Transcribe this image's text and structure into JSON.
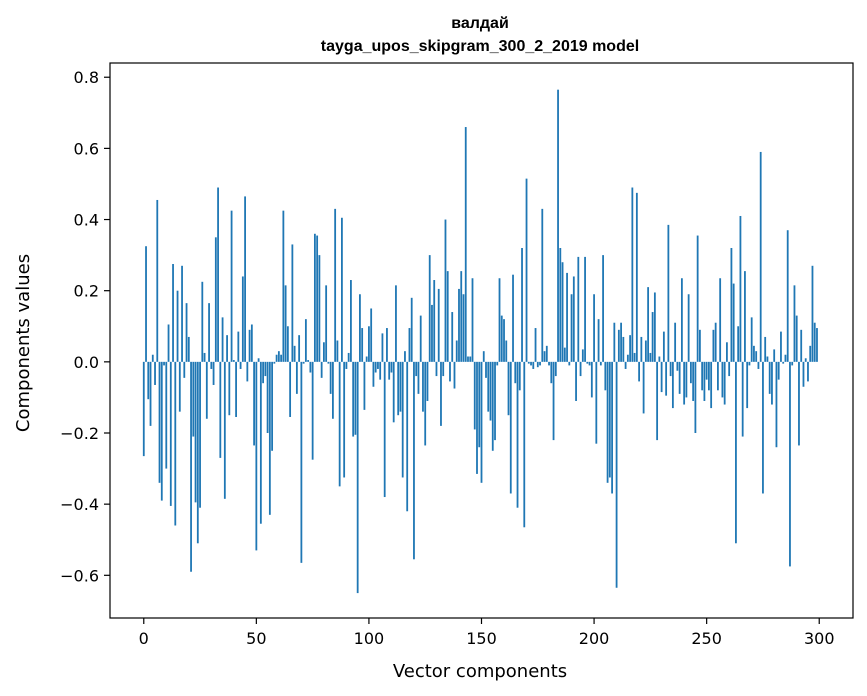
{
  "chart_data": {
    "type": "bar",
    "title": "валдай",
    "subtitle": "tayga_upos_skipgram_300_2_2019 model",
    "xlabel": "Vector components",
    "ylabel": "Components values",
    "xlim": [
      -15,
      315
    ],
    "ylim": [
      -0.72,
      0.84
    ],
    "x_ticks": [
      0,
      50,
      100,
      150,
      200,
      250,
      300
    ],
    "y_ticks": [
      0.8,
      0.6,
      0.4,
      0.2,
      0.0,
      -0.2,
      -0.4,
      -0.6
    ],
    "y_tick_labels": [
      "0.8",
      "0.6",
      "0.4",
      "0.2",
      "0.0",
      "−0.2",
      "−0.4",
      "−0.6"
    ],
    "grid": false,
    "bar_color": "#1f77b4",
    "values": [
      -0.265,
      0.325,
      -0.105,
      -0.18,
      0.02,
      -0.065,
      0.455,
      -0.34,
      -0.39,
      -0.01,
      -0.3,
      0.105,
      -0.405,
      0.275,
      -0.46,
      0.2,
      -0.14,
      0.27,
      -0.045,
      0.165,
      0.07,
      -0.59,
      -0.21,
      -0.395,
      -0.51,
      -0.41,
      0.225,
      0.025,
      -0.16,
      0.165,
      -0.02,
      -0.065,
      0.35,
      0.49,
      -0.27,
      0.125,
      -0.385,
      0.075,
      -0.15,
      0.425,
      0.005,
      -0.155,
      0.085,
      -0.02,
      0.24,
      0.465,
      -0.055,
      0.09,
      0.105,
      -0.235,
      -0.53,
      0.01,
      -0.455,
      -0.06,
      -0.04,
      -0.2,
      -0.43,
      -0.25,
      -0.005,
      0.02,
      0.03,
      0.02,
      0.425,
      0.215,
      0.1,
      -0.155,
      0.33,
      0.045,
      -0.09,
      0.075,
      -0.565,
      -0.005,
      0.12,
      0.005,
      -0.03,
      -0.275,
      0.36,
      0.355,
      0.3,
      -0.045,
      0.055,
      0.215,
      -0.005,
      -0.09,
      -0.16,
      0.43,
      0.06,
      -0.35,
      0.405,
      -0.325,
      -0.02,
      0.025,
      0.23,
      -0.21,
      -0.205,
      -0.65,
      0.19,
      0.095,
      -0.135,
      0.015,
      0.1,
      0.15,
      -0.07,
      -0.03,
      -0.02,
      -0.05,
      0.08,
      -0.38,
      0.095,
      -0.05,
      -0.03,
      -0.17,
      0.215,
      -0.15,
      -0.14,
      -0.325,
      0.03,
      -0.42,
      0.095,
      0.18,
      -0.555,
      -0.04,
      -0.09,
      0.13,
      -0.14,
      -0.235,
      -0.11,
      0.3,
      0.16,
      0.23,
      -0.04,
      0.205,
      -0.18,
      -0.04,
      0.4,
      0.255,
      -0.055,
      0.14,
      -0.075,
      0.06,
      0.205,
      0.255,
      0.19,
      0.66,
      0.015,
      0.015,
      0.235,
      -0.19,
      -0.315,
      -0.24,
      -0.34,
      0.03,
      -0.045,
      -0.14,
      -0.165,
      -0.25,
      -0.22,
      -0.01,
      0.235,
      0.13,
      0.12,
      0.06,
      -0.15,
      -0.37,
      0.245,
      -0.06,
      -0.41,
      -0.08,
      0.32,
      -0.465,
      0.515,
      -0.005,
      -0.01,
      -0.02,
      0.095,
      -0.015,
      -0.01,
      0.43,
      0.03,
      0.045,
      -0.01,
      -0.06,
      -0.22,
      -0.04,
      0.765,
      0.32,
      0.28,
      0.04,
      0.25,
      -0.01,
      0.19,
      0.24,
      -0.11,
      0.295,
      -0.04,
      0.035,
      0.295,
      -0.005,
      -0.01,
      -0.1,
      0.19,
      -0.23,
      0.12,
      -0.01,
      0.3,
      -0.08,
      -0.34,
      -0.325,
      -0.37,
      0.11,
      -0.635,
      0.09,
      0.11,
      0.07,
      -0.02,
      0.02,
      0.075,
      0.49,
      0.025,
      0.475,
      -0.055,
      0.07,
      -0.145,
      0.06,
      0.21,
      0.025,
      0.14,
      0.195,
      -0.22,
      0.015,
      -0.085,
      0.085,
      -0.095,
      0.385,
      -0.04,
      -0.13,
      0.11,
      -0.025,
      -0.09,
      0.235,
      -0.12,
      -0.1,
      0.19,
      -0.06,
      -0.11,
      -0.2,
      0.355,
      0.09,
      -0.08,
      -0.11,
      -0.05,
      -0.08,
      -0.13,
      0.09,
      0.11,
      -0.08,
      0.235,
      -0.1,
      -0.12,
      0.055,
      -0.04,
      0.32,
      0.22,
      -0.51,
      0.1,
      0.41,
      -0.21,
      0.255,
      -0.13,
      -0.01,
      0.125,
      0.045,
      0.03,
      -0.02,
      0.59,
      -0.37,
      0.07,
      0.015,
      -0.09,
      -0.12,
      0.035,
      -0.24,
      -0.05,
      0.085,
      -0.005,
      0.02,
      0.37,
      -0.575,
      -0.01,
      0.215,
      0.13,
      -0.235,
      0.09,
      -0.07,
      0.01,
      -0.055,
      0.045,
      0.27,
      0.11,
      0.095
    ]
  }
}
